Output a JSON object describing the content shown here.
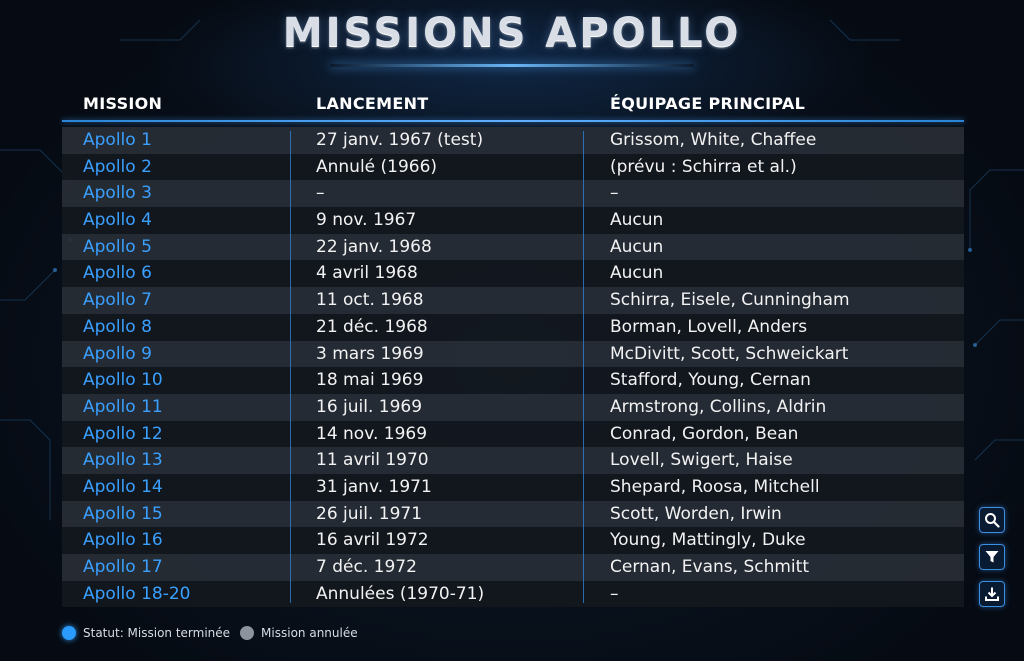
{
  "title": "MISSIONS APOLLO",
  "columns": {
    "mission": "MISSION",
    "launch": "LANCEMENT",
    "crew": "ÉQUIPAGE PRINCIPAL"
  },
  "rows": [
    {
      "mission": "Apollo 1",
      "launch": "27 janv. 1967 (test)",
      "crew": "Grissom, White, Chaffee"
    },
    {
      "mission": "Apollo 2",
      "launch": "Annulé (1966)",
      "crew": "(prévu : Schirra et al.)"
    },
    {
      "mission": "Apollo 3",
      "launch": "–",
      "crew": "–"
    },
    {
      "mission": "Apollo 4",
      "launch": "9 nov. 1967",
      "crew": "Aucun"
    },
    {
      "mission": "Apollo 5",
      "launch": "22 janv. 1968",
      "crew": "Aucun"
    },
    {
      "mission": "Apollo 6",
      "launch": "4 avril 1968",
      "crew": "Aucun"
    },
    {
      "mission": "Apollo 7",
      "launch": "11 oct. 1968",
      "crew": "Schirra, Eisele, Cunningham"
    },
    {
      "mission": "Apollo 8",
      "launch": "21 déc. 1968",
      "crew": "Borman, Lovell, Anders"
    },
    {
      "mission": "Apollo 9",
      "launch": "3 mars 1969",
      "crew": "McDivitt, Scott, Schweickart"
    },
    {
      "mission": "Apollo 10",
      "launch": "18 mai 1969",
      "crew": "Stafford, Young, Cernan"
    },
    {
      "mission": "Apollo 11",
      "launch": "16 juil. 1969",
      "crew": "Armstrong, Collins, Aldrin"
    },
    {
      "mission": "Apollo 12",
      "launch": "14 nov. 1969",
      "crew": "Conrad, Gordon, Bean"
    },
    {
      "mission": "Apollo 13",
      "launch": "11 avril 1970",
      "crew": "Lovell, Swigert, Haise"
    },
    {
      "mission": "Apollo 14",
      "launch": "31 janv. 1971",
      "crew": "Shepard, Roosa, Mitchell"
    },
    {
      "mission": "Apollo 15",
      "launch": "26 juil. 1971",
      "crew": "Scott, Worden, Irwin"
    },
    {
      "mission": "Apollo 16",
      "launch": "16 avril 1972",
      "crew": "Young, Mattingly, Duke"
    },
    {
      "mission": "Apollo 17",
      "launch": "7 déc. 1972",
      "crew": "Cernan, Evans, Schmitt"
    },
    {
      "mission": "Apollo 18-20",
      "launch": "Annulées (1970-71)",
      "crew": "–"
    }
  ],
  "legend": {
    "completed": "Statut: Mission terminée",
    "cancelled": "Mission annulée"
  },
  "tools": [
    {
      "icon": "search-icon"
    },
    {
      "icon": "filter-icon"
    },
    {
      "icon": "download-icon"
    }
  ],
  "colors": {
    "accent": "#3aa0ff",
    "completed_dot": "#2a9bff",
    "cancelled_dot": "#8c939c"
  }
}
